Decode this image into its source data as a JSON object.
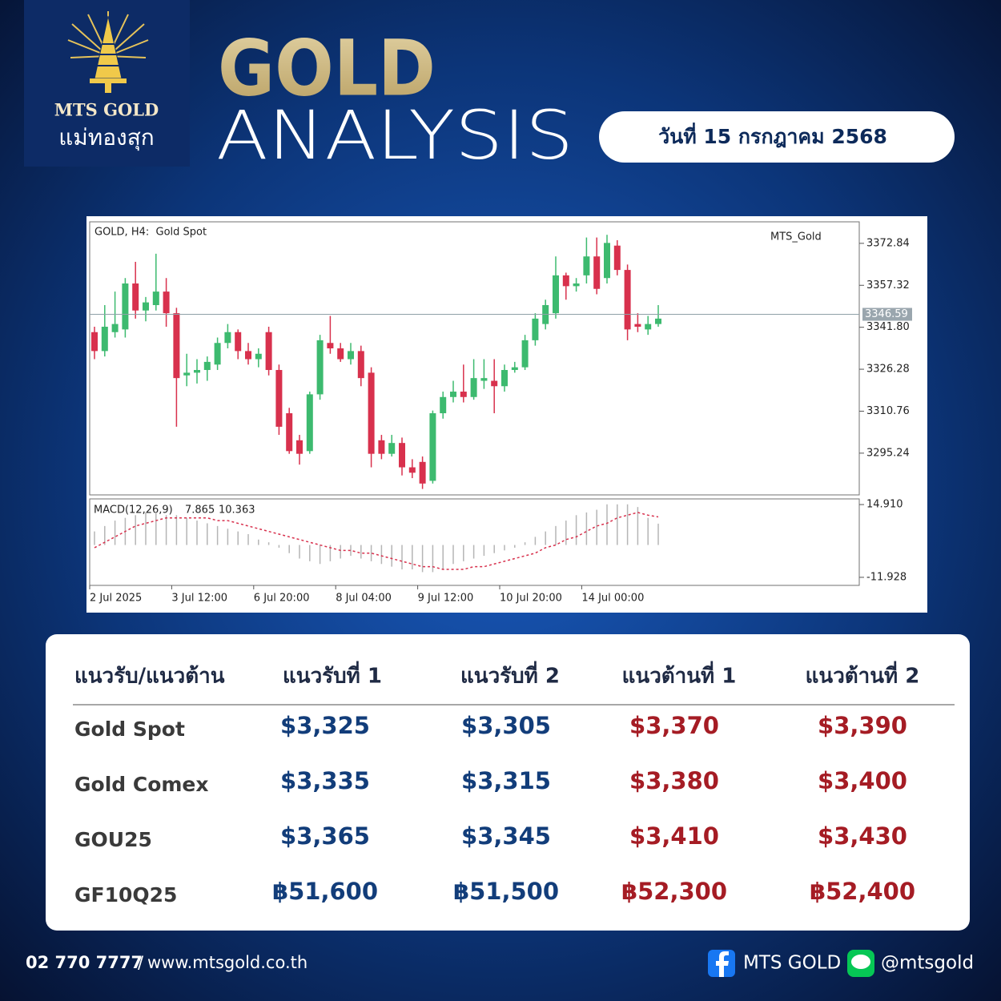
{
  "header": {
    "brand": "MTS GOLD",
    "brand_thai": "แม่ทองสุก",
    "title_line1": "GOLD",
    "title_line2": "ANALYSIS",
    "date": "วันที่ 15 กรกฎาคม 2568"
  },
  "chart_data": {
    "type": "candlestick",
    "title": "GOLD, H4:  Gold Spot",
    "watermark": "MTS_Gold",
    "categories": [
      "2 Jul 2025",
      null,
      null,
      null,
      null,
      null,
      null,
      null,
      "3 Jul 12:00",
      null,
      null,
      null,
      null,
      null,
      null,
      null,
      "6 Jul 20:00",
      null,
      null,
      null,
      null,
      null,
      null,
      null,
      "8 Jul 04:00",
      null,
      null,
      null,
      null,
      null,
      null,
      null,
      "9 Jul 12:00",
      null,
      null,
      null,
      null,
      null,
      null,
      null,
      "10 Jul 20:00",
      null,
      null,
      null,
      null,
      null,
      null,
      null,
      "14 Jul 00:00",
      null,
      null,
      null,
      null,
      null,
      null,
      null
    ],
    "open": [
      3340,
      3333,
      3340,
      3341,
      3358,
      3348,
      3350,
      3355,
      3347,
      3324,
      3325,
      3326,
      3328,
      3336,
      3340,
      3333,
      3330,
      3340,
      3326,
      3310,
      3300,
      3296,
      3317,
      3336,
      3334,
      3330,
      3333,
      3325,
      3300,
      3295,
      3299,
      3290,
      3292,
      3285,
      3310,
      3316,
      3318,
      3316,
      3322,
      3322,
      3320,
      3326,
      3327,
      3337,
      3343,
      3347,
      3361,
      3357,
      3361,
      3368,
      3360,
      3372,
      3363,
      3343,
      3341,
      3343
    ],
    "high": [
      3342,
      3350,
      3355,
      3360,
      3366,
      3353,
      3369,
      3360,
      3349,
      3332,
      3330,
      3331,
      3338,
      3343,
      3341,
      3336,
      3334,
      3342,
      3328,
      3312,
      3302,
      3318,
      3339,
      3346,
      3336,
      3336,
      3335,
      3327,
      3302,
      3302,
      3301,
      3293,
      3294,
      3311,
      3318,
      3322,
      3328,
      3330,
      3330,
      3330,
      3328,
      3329,
      3339,
      3347,
      3352,
      3368,
      3362,
      3360,
      3375,
      3375,
      3376,
      3374,
      3365,
      3347,
      3346,
      3350
    ],
    "low": [
      3330,
      3331,
      3338,
      3338,
      3345,
      3344,
      3348,
      3342,
      3305,
      3320,
      3321,
      3322,
      3326,
      3334,
      3330,
      3328,
      3327,
      3324,
      3302,
      3295,
      3291,
      3295,
      3315,
      3332,
      3329,
      3328,
      3320,
      3290,
      3293,
      3294,
      3287,
      3286,
      3282,
      3284,
      3308,
      3314,
      3314,
      3315,
      3319,
      3310,
      3318,
      3325,
      3326,
      3335,
      3341,
      3345,
      3352,
      3355,
      3358,
      3354,
      3358,
      3361,
      3337,
      3340,
      3339,
      3342
    ],
    "close": [
      3333,
      3342,
      3343,
      3358,
      3348,
      3351,
      3355,
      3347,
      3323,
      3325,
      3326,
      3329,
      3336,
      3340,
      3333,
      3330,
      3332,
      3326,
      3305,
      3296,
      3295,
      3317,
      3337,
      3334,
      3330,
      3333,
      3323,
      3295,
      3295,
      3299,
      3290,
      3288,
      3284,
      3310,
      3316,
      3318,
      3316,
      3323,
      3323,
      3320,
      3326,
      3327,
      3337,
      3345,
      3350,
      3361,
      3357,
      3358,
      3368,
      3356,
      3373,
      3363,
      3341,
      3342,
      3343,
      3345
    ],
    "up_color": "#3dba6f",
    "down_color": "#d8314d",
    "ylim": [
      3279.8,
      3380.8
    ],
    "yticks": [
      3372.84,
      3357.32,
      {
        "value": 3341.8,
        "label": "3341.80"
      },
      3326.28,
      3310.76,
      3295.24
    ],
    "current_price": 3346.59,
    "macd": {
      "title": "MACD(12,26,9)",
      "ylim": [
        -14.9,
        17.0
      ],
      "yticks": [
        {
          "value": 14.91,
          "label": "14.910"
        },
        -11.928
      ],
      "series": [
        {
          "color": "#b5b5b5",
          "values": [
            5,
            7,
            9,
            10,
            11,
            12,
            12,
            11,
            11,
            10,
            9,
            8,
            7,
            6,
            5,
            4,
            2,
            1,
            -1,
            -3,
            -5,
            -6,
            -7,
            -6,
            -5,
            -4,
            -5,
            -6,
            -7,
            -8,
            -9,
            -9,
            -10,
            -10,
            -9,
            -7,
            -6,
            -5,
            -4,
            -3,
            -2,
            -1,
            1,
            3,
            5,
            7,
            9,
            11,
            12,
            13,
            15,
            15,
            15,
            14,
            10,
            7.865
          ]
        },
        {
          "color": "#d8314d",
          "values": [
            -1,
            1,
            3,
            5,
            7,
            8,
            9,
            10,
            10,
            10,
            10,
            10,
            9,
            9,
            8,
            7,
            6,
            5,
            4,
            3,
            2,
            1,
            0,
            -1,
            -2,
            -2,
            -3,
            -3,
            -4,
            -5,
            -6,
            -7,
            -8,
            -8,
            -9,
            -9,
            -9,
            -8,
            -8,
            -7,
            -6,
            -5,
            -4,
            -3,
            -1,
            0,
            2,
            3,
            5,
            7,
            8,
            10,
            11,
            12,
            11,
            10.363
          ]
        }
      ]
    }
  },
  "table": {
    "header": [
      "แนวรับ/แนวต้าน",
      "แนวรับที่ 1",
      "แนวรับที่ 2",
      "แนวต้านที่ 1",
      "แนวต้านที่ 2"
    ],
    "rows": [
      [
        "Gold Spot",
        "$3,325",
        "$3,305",
        "$3,370",
        "$3,390"
      ],
      [
        "Gold Comex",
        "$3,335",
        "$3,315",
        "$3,380",
        "$3,400"
      ],
      [
        "GOU25",
        "$3,365",
        "$3,345",
        "$3,410",
        "$3,430"
      ],
      [
        "GF10Q25",
        "฿51,600",
        "฿51,500",
        "฿52,300",
        "฿52,400"
      ]
    ]
  },
  "footer": {
    "phone": "02 770 7777",
    "separator": "/",
    "website": "www.mtsgold.co.th",
    "facebook": "MTS GOLD",
    "line": "@mtsgold"
  }
}
